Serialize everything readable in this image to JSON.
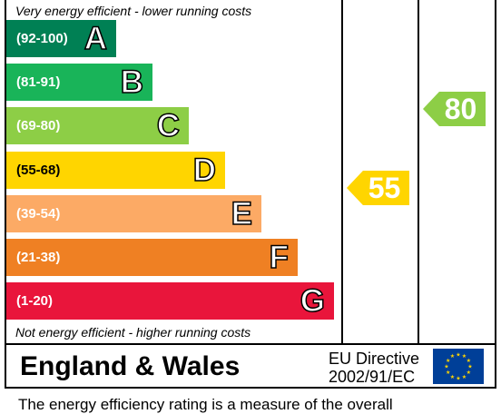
{
  "chart_data": {
    "type": "table",
    "top_caption": "Very energy efficient - lower running costs",
    "bottom_caption": "Not energy efficient - higher running costs",
    "bands": [
      {
        "range": "(92-100)",
        "letter": "A",
        "color": "#008054"
      },
      {
        "range": "(81-91)",
        "letter": "B",
        "color": "#19b459"
      },
      {
        "range": "(69-80)",
        "letter": "C",
        "color": "#8dce46"
      },
      {
        "range": "(55-68)",
        "letter": "D",
        "color": "#ffd500"
      },
      {
        "range": "(39-54)",
        "letter": "E",
        "color": "#fcaa65"
      },
      {
        "range": "(21-38)",
        "letter": "F",
        "color": "#ef8023"
      },
      {
        "range": "(1-20)",
        "letter": "G",
        "color": "#e9153b"
      }
    ],
    "current_rating": {
      "value": 55,
      "band": "D",
      "color": "#ffd500"
    },
    "potential_rating": {
      "value": 80,
      "band": "C",
      "color": "#8dce46"
    }
  },
  "footer": {
    "region": "England & Wales",
    "directive_line1": "EU Directive",
    "directive_line2": "2002/91/EC",
    "note": "The energy efficiency rating is a measure of the overall"
  }
}
